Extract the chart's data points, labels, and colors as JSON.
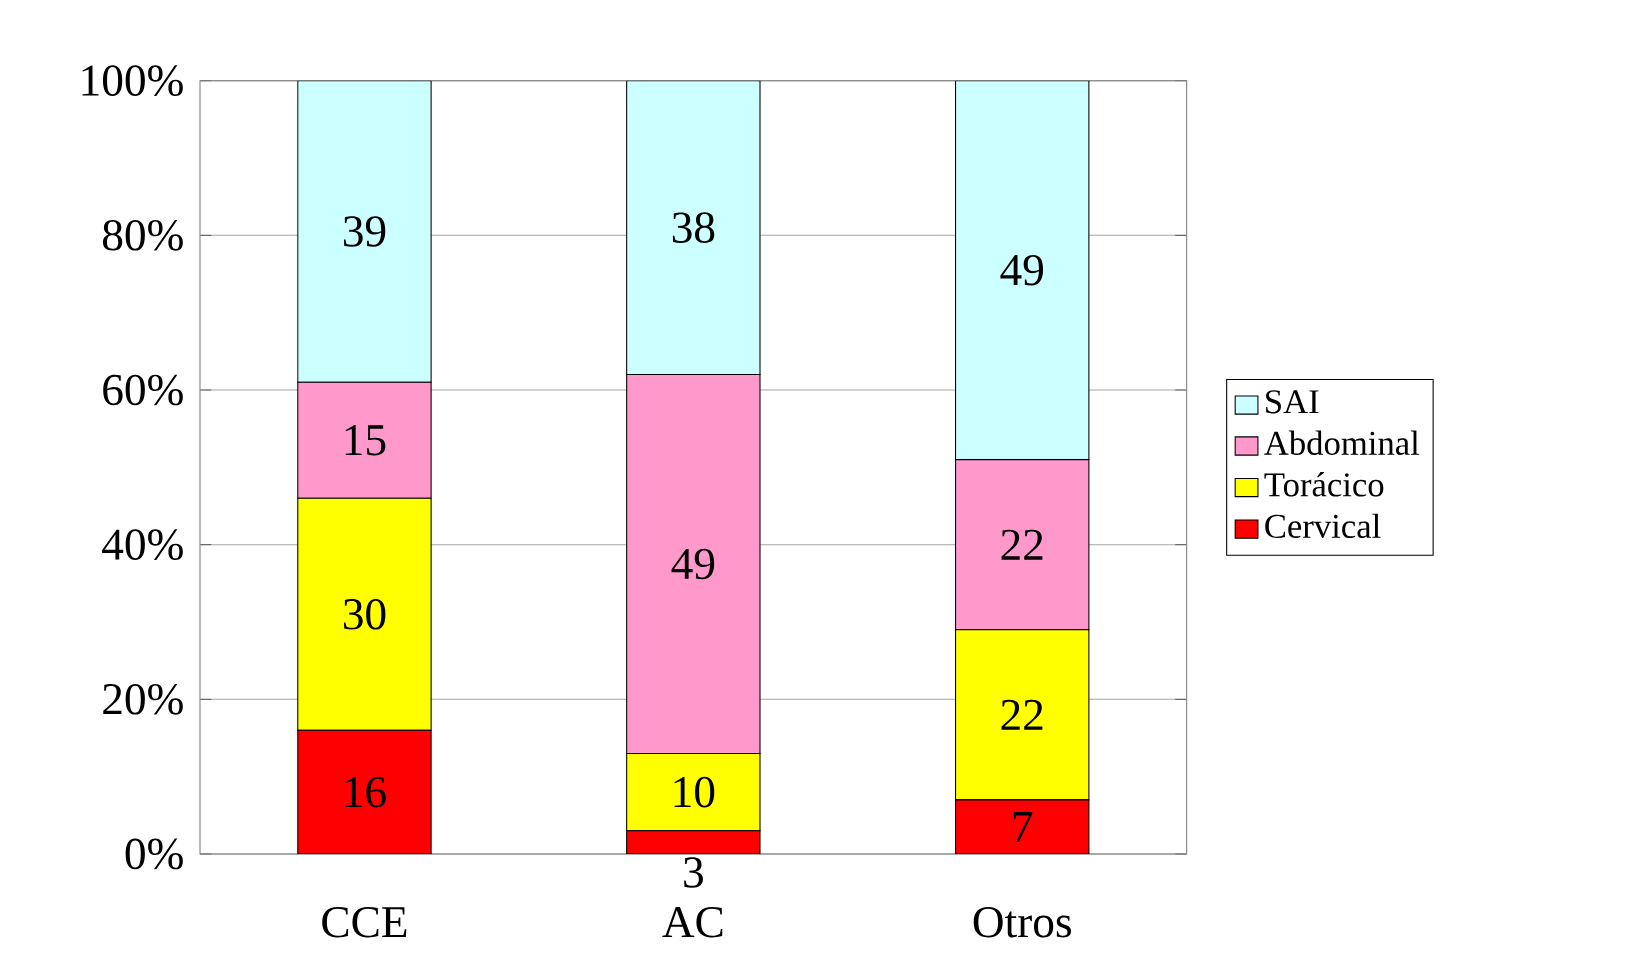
{
  "chart_data": {
    "type": "bar",
    "stacked": true,
    "categories": [
      "CCE",
      "AC",
      "Otros"
    ],
    "series": [
      {
        "name": "Cervical",
        "color": "#ff0000",
        "values": [
          16,
          3,
          7
        ]
      },
      {
        "name": "Torácico",
        "color": "#ffff00",
        "values": [
          30,
          10,
          22
        ]
      },
      {
        "name": "Abdominal",
        "color": "#ff99cc",
        "values": [
          15,
          49,
          22
        ]
      },
      {
        "name": "SAI",
        "color": "#ccffff",
        "values": [
          39,
          38,
          49
        ]
      }
    ],
    "ylim": [
      0,
      100
    ],
    "yticks": [
      {
        "value": 0,
        "label": "0%"
      },
      {
        "value": 20,
        "label": "20%"
      },
      {
        "value": 40,
        "label": "40%"
      },
      {
        "value": 60,
        "label": "60%"
      },
      {
        "value": 80,
        "label": "80%"
      },
      {
        "value": 100,
        "label": "100%"
      }
    ],
    "grid": "y",
    "legend": "right",
    "data_labels": true
  }
}
